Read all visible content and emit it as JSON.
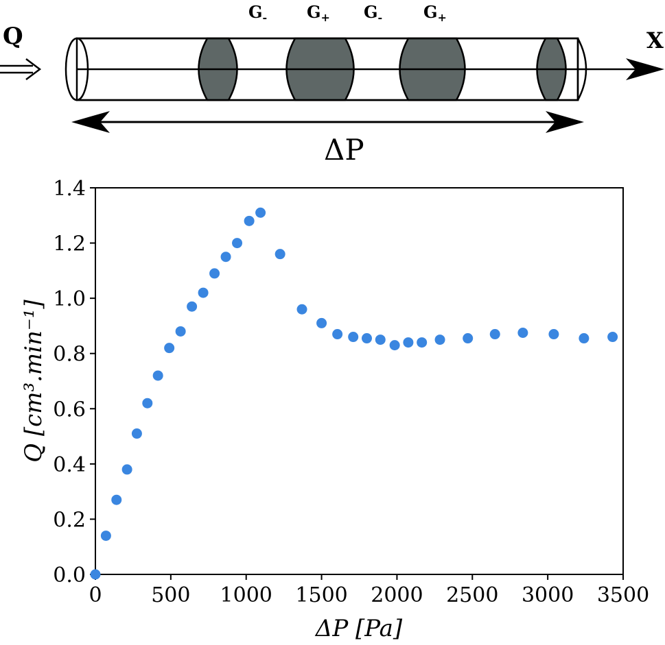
{
  "diagram": {
    "flow_label": "Q",
    "axis_label": "X",
    "pressure_label": "ΔP",
    "segments": [
      {
        "name": "G",
        "sign": "-"
      },
      {
        "name": "G",
        "sign": "+"
      },
      {
        "name": "G",
        "sign": "-"
      },
      {
        "name": "G",
        "sign": "+"
      }
    ],
    "band_color": "#5e6766",
    "tube_color": "#ffffff"
  },
  "chart_data": {
    "type": "scatter",
    "xlabel_symbol": "ΔP",
    "xlabel_unit": "[Pa]",
    "ylabel_symbol": "Q",
    "ylabel_unit": "[cm³.min⁻¹]",
    "xlim": [
      0,
      3500
    ],
    "ylim": [
      0,
      1.4
    ],
    "xticks": [
      0,
      500,
      1000,
      1500,
      2000,
      2500,
      3000,
      3500
    ],
    "yticks": [
      0.0,
      0.2,
      0.4,
      0.6,
      0.8,
      1.0,
      1.2,
      1.4
    ],
    "xtick_labels": [
      "0",
      "500",
      "1000",
      "1500",
      "2000",
      "2500",
      "3000",
      "3500"
    ],
    "ytick_labels": [
      "0.0",
      "0.2",
      "0.4",
      "0.6",
      "0.8",
      "1.0",
      "1.2",
      "1.4"
    ],
    "marker_color": "#3a86e0",
    "grid": false,
    "points": [
      {
        "x": 0,
        "y": 0.0
      },
      {
        "x": 70,
        "y": 0.14
      },
      {
        "x": 140,
        "y": 0.27
      },
      {
        "x": 210,
        "y": 0.38
      },
      {
        "x": 275,
        "y": 0.51
      },
      {
        "x": 345,
        "y": 0.62
      },
      {
        "x": 415,
        "y": 0.72
      },
      {
        "x": 490,
        "y": 0.82
      },
      {
        "x": 565,
        "y": 0.88
      },
      {
        "x": 640,
        "y": 0.97
      },
      {
        "x": 715,
        "y": 1.02
      },
      {
        "x": 790,
        "y": 1.09
      },
      {
        "x": 865,
        "y": 1.15
      },
      {
        "x": 940,
        "y": 1.2
      },
      {
        "x": 1020,
        "y": 1.28
      },
      {
        "x": 1095,
        "y": 1.31
      },
      {
        "x": 1225,
        "y": 1.16
      },
      {
        "x": 1370,
        "y": 0.96
      },
      {
        "x": 1500,
        "y": 0.91
      },
      {
        "x": 1605,
        "y": 0.87
      },
      {
        "x": 1710,
        "y": 0.86
      },
      {
        "x": 1800,
        "y": 0.855
      },
      {
        "x": 1890,
        "y": 0.85
      },
      {
        "x": 1985,
        "y": 0.83
      },
      {
        "x": 2075,
        "y": 0.84
      },
      {
        "x": 2165,
        "y": 0.84
      },
      {
        "x": 2285,
        "y": 0.85
      },
      {
        "x": 2470,
        "y": 0.855
      },
      {
        "x": 2650,
        "y": 0.87
      },
      {
        "x": 2835,
        "y": 0.875
      },
      {
        "x": 3040,
        "y": 0.87
      },
      {
        "x": 3240,
        "y": 0.855
      },
      {
        "x": 3430,
        "y": 0.86
      }
    ]
  }
}
